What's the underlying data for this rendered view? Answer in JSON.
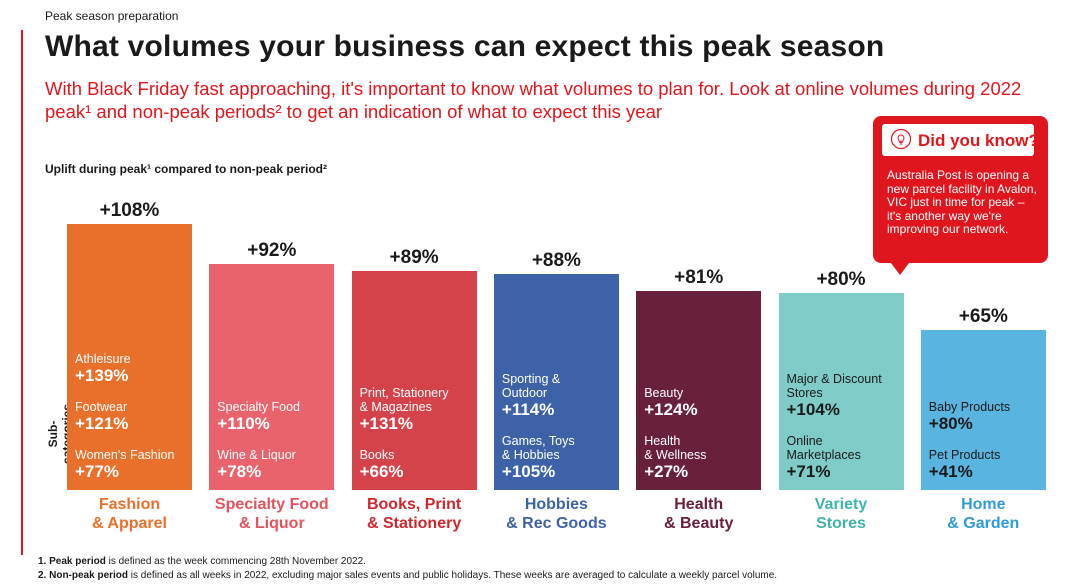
{
  "kicker": "Peak season preparation",
  "chart_data": {
    "type": "bar",
    "title": "What volumes your business can expect this peak season",
    "subtitle": "With Black Friday fast approaching, it's important to know what volumes to plan for. Look at online volumes during 2022 peak¹ and non-peak periods² to get an indication of what to expect this year",
    "chart_label": "Uplift during peak¹ compared to non-peak period²",
    "y_axis_label": "Sub-categories",
    "categories": [
      "Fashion\n& Apparel",
      "Specialty Food\n& Liquor",
      "Books, Print\n& Stationery",
      "Hobbies\n& Rec Goods",
      "Health\n& Beauty",
      "Variety\nStores",
      "Home\n& Garden"
    ],
    "values": [
      108,
      92,
      89,
      88,
      81,
      80,
      65
    ],
    "value_labels": [
      "+108%",
      "+92%",
      "+89%",
      "+88%",
      "+81%",
      "+80%",
      "+65%"
    ],
    "colors": [
      "#e8702a",
      "#e8636c",
      "#d5434a",
      "#3e62a8",
      "#69203d",
      "#7ecbc7",
      "#5ab4e0"
    ],
    "category_colors": [
      "#e8702a",
      "#e4525c",
      "#d0262e",
      "#3e62a8",
      "#69203d",
      "#3fb3ad",
      "#2f9bd6"
    ],
    "sub_text_colors": [
      "#ffffff",
      "#ffffff",
      "#ffffff",
      "#ffffff",
      "#ffffff",
      "#1a1a1a",
      "#1a1a1a"
    ],
    "subcategories": [
      [
        {
          "name": "Athleisure",
          "value": 139,
          "value_label": "+139%"
        },
        {
          "name": "Footwear",
          "value": 121,
          "value_label": "+121%"
        },
        {
          "name": "Women's Fashion",
          "value": 77,
          "value_label": "+77%"
        }
      ],
      [
        {
          "name": "Specialty Food",
          "value": 110,
          "value_label": "+110%"
        },
        {
          "name": "Wine & Liquor",
          "value": 78,
          "value_label": "+78%"
        }
      ],
      [
        {
          "name": "Print, Stationery\n& Magazines",
          "value": 131,
          "value_label": "+131%"
        },
        {
          "name": "Books",
          "value": 66,
          "value_label": "+66%"
        }
      ],
      [
        {
          "name": "Sporting &\nOutdoor",
          "value": 114,
          "value_label": "+114%"
        },
        {
          "name": "Games, Toys\n& Hobbies",
          "value": 105,
          "value_label": "+105%"
        }
      ],
      [
        {
          "name": "Beauty",
          "value": 124,
          "value_label": "+124%"
        },
        {
          "name": "Health\n& Wellness",
          "value": 27,
          "value_label": "+27%"
        }
      ],
      [
        {
          "name": "Major & Discount\nStores",
          "value": 104,
          "value_label": "+104%"
        },
        {
          "name": "Online\nMarketplaces",
          "value": 71,
          "value_label": "+71%"
        }
      ],
      [
        {
          "name": "Baby Products",
          "value": 80,
          "value_label": "+80%"
        },
        {
          "name": "Pet Products",
          "value": 41,
          "value_label": "+41%"
        }
      ]
    ]
  },
  "callout": {
    "title": "Did you know?",
    "text": "Australia Post is opening a new parcel facility in Avalon, VIC just in time for peak – it's another way we're improving our network."
  },
  "footnotes": [
    {
      "bold": "1. Peak period",
      "text": " is defined as the week commencing 28th November 2022."
    },
    {
      "bold": "2. Non-peak period",
      "text": " is defined as all weeks in 2022, excluding major sales events and public holidays. These weeks are averaged to calculate a weekly parcel volume."
    }
  ]
}
